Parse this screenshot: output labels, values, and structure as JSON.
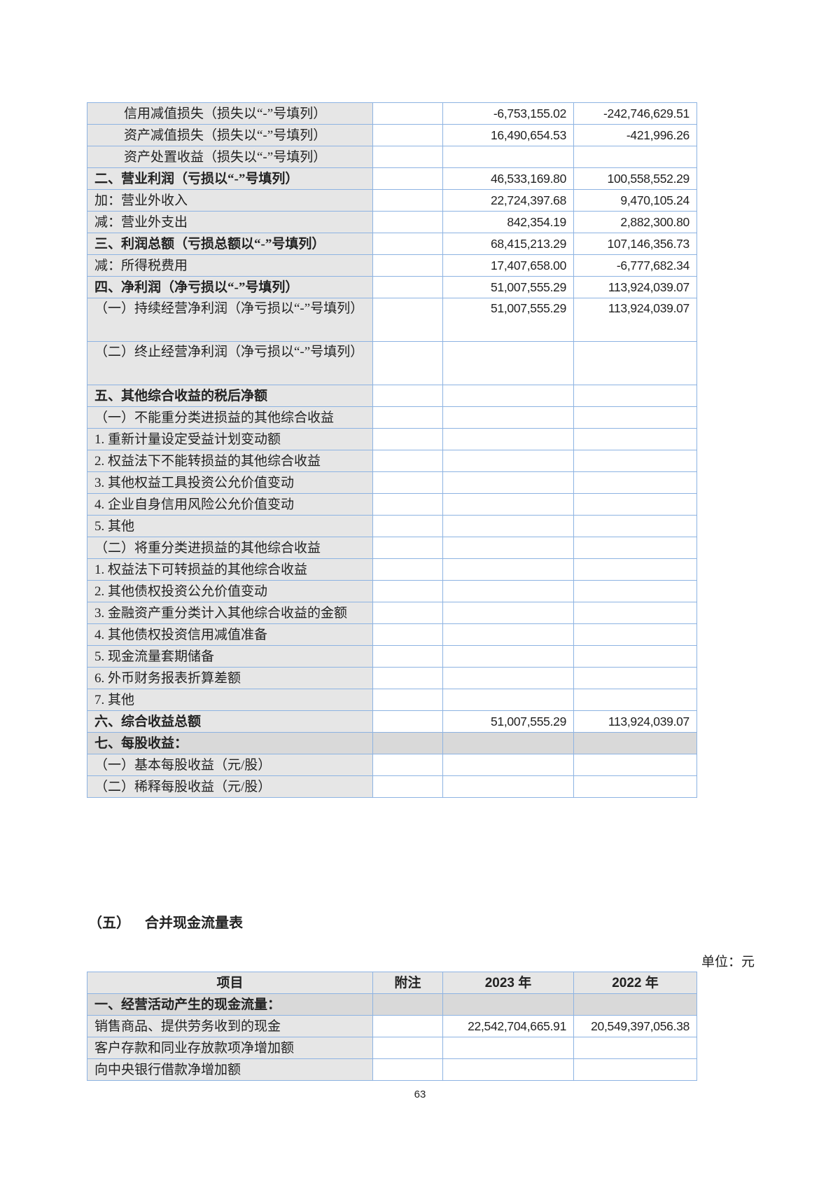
{
  "income_statement": {
    "rows": [
      {
        "label": "信用减值损失（损失以“-”号填列）",
        "note": "",
        "y2023": "-6,753,155.02",
        "y2022": "-242,746,629.51",
        "indent": true
      },
      {
        "label": "资产减值损失（损失以“-”号填列）",
        "note": "",
        "y2023": "16,490,654.53",
        "y2022": "-421,996.26",
        "indent": true
      },
      {
        "label": "资产处置收益（损失以“-”号填列）",
        "note": "",
        "y2023": "",
        "y2022": "",
        "indent": true
      },
      {
        "label": "二、营业利润（亏损以“-”号填列）",
        "note": "",
        "y2023": "46,533,169.80",
        "y2022": "100,558,552.29",
        "bold": true
      },
      {
        "label": "加：营业外收入",
        "note": "",
        "y2023": "22,724,397.68",
        "y2022": "9,470,105.24"
      },
      {
        "label": "减：营业外支出",
        "note": "",
        "y2023": "842,354.19",
        "y2022": "2,882,300.80"
      },
      {
        "label": "三、利润总额（亏损总额以“-”号填列）",
        "note": "",
        "y2023": "68,415,213.29",
        "y2022": "107,146,356.73",
        "bold": true
      },
      {
        "label": "减：所得税费用",
        "note": "",
        "y2023": "17,407,658.00",
        "y2022": "-6,777,682.34"
      },
      {
        "label": "四、净利润（净亏损以“-”号填列）",
        "note": "",
        "y2023": "51,007,555.29",
        "y2022": "113,924,039.07",
        "bold": true
      },
      {
        "label": "（一）持续经营净利润（净亏损以“-”号填列）",
        "note": "",
        "y2023": "51,007,555.29",
        "y2022": "113,924,039.07",
        "double": true
      },
      {
        "label": "（二）终止经营净利润（净亏损以“-”号填列）",
        "note": "",
        "y2023": "",
        "y2022": "",
        "double": true
      },
      {
        "label": "五、其他综合收益的税后净额",
        "note": "",
        "y2023": "",
        "y2022": "",
        "bold": true
      },
      {
        "label": "（一）不能重分类进损益的其他综合收益",
        "note": "",
        "y2023": "",
        "y2022": ""
      },
      {
        "label": "1. 重新计量设定受益计划变动额",
        "note": "",
        "y2023": "",
        "y2022": ""
      },
      {
        "label": "2. 权益法下不能转损益的其他综合收益",
        "note": "",
        "y2023": "",
        "y2022": ""
      },
      {
        "label": "3. 其他权益工具投资公允价值变动",
        "note": "",
        "y2023": "",
        "y2022": ""
      },
      {
        "label": "4. 企业自身信用风险公允价值变动",
        "note": "",
        "y2023": "",
        "y2022": ""
      },
      {
        "label": "5. 其他",
        "note": "",
        "y2023": "",
        "y2022": ""
      },
      {
        "label": "（二）将重分类进损益的其他综合收益",
        "note": "",
        "y2023": "",
        "y2022": ""
      },
      {
        "label": "1. 权益法下可转损益的其他综合收益",
        "note": "",
        "y2023": "",
        "y2022": ""
      },
      {
        "label": "2. 其他债权投资公允价值变动",
        "note": "",
        "y2023": "",
        "y2022": ""
      },
      {
        "label": "3. 金融资产重分类计入其他综合收益的金额",
        "note": "",
        "y2023": "",
        "y2022": ""
      },
      {
        "label": "4. 其他债权投资信用减值准备",
        "note": "",
        "y2023": "",
        "y2022": ""
      },
      {
        "label": "5. 现金流量套期储备",
        "note": "",
        "y2023": "",
        "y2022": ""
      },
      {
        "label": "6. 外币财务报表折算差额",
        "note": "",
        "y2023": "",
        "y2022": ""
      },
      {
        "label": "7. 其他",
        "note": "",
        "y2023": "",
        "y2022": ""
      },
      {
        "label": "六、综合收益总额",
        "note": "",
        "y2023": "51,007,555.29",
        "y2022": "113,924,039.07",
        "bold": true
      },
      {
        "label": "七、每股收益：",
        "note": "",
        "y2023": "",
        "y2022": "",
        "bold": true,
        "shade": true
      },
      {
        "label": "（一）基本每股收益（元/股）",
        "note": "",
        "y2023": "",
        "y2022": ""
      },
      {
        "label": "（二）稀释每股收益（元/股）",
        "note": "",
        "y2023": "",
        "y2022": ""
      }
    ]
  },
  "section": {
    "number": "（五）",
    "title": "合并现金流量表"
  },
  "unit_label": "单位：元",
  "cash_flow": {
    "headers": [
      "项目",
      "附注",
      "2023 年",
      "2022 年"
    ],
    "rows": [
      {
        "label": "一、经营活动产生的现金流量：",
        "note": "",
        "y2023": "",
        "y2022": "",
        "bold": true,
        "shade": true
      },
      {
        "label": "销售商品、提供劳务收到的现金",
        "note": "",
        "y2023": "22,542,704,665.91",
        "y2022": "20,549,397,056.38"
      },
      {
        "label": "客户存款和同业存放款项净增加额",
        "note": "",
        "y2023": "",
        "y2022": ""
      },
      {
        "label": "向中央银行借款净增加额",
        "note": "",
        "y2023": "",
        "y2022": ""
      }
    ]
  },
  "page_number": "63",
  "colors": {
    "border": "#8db3e2",
    "label_bg": "#e6e6e6",
    "section_bg": "#d9d9d9"
  }
}
